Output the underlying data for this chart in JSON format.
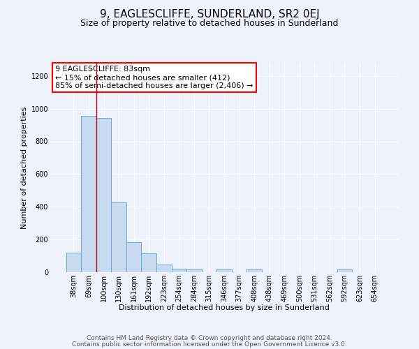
{
  "title1": "9, EAGLESCLIFFE, SUNDERLAND, SR2 0EJ",
  "title2": "Size of property relative to detached houses in Sunderland",
  "xlabel": "Distribution of detached houses by size in Sunderland",
  "ylabel": "Number of detached properties",
  "bar_color": "#c8daf0",
  "bar_edge_color": "#6aaad4",
  "bar_width": 1.0,
  "categories": [
    "38sqm",
    "69sqm",
    "100sqm",
    "130sqm",
    "161sqm",
    "192sqm",
    "223sqm",
    "254sqm",
    "284sqm",
    "315sqm",
    "346sqm",
    "377sqm",
    "408sqm",
    "438sqm",
    "469sqm",
    "500sqm",
    "531sqm",
    "562sqm",
    "592sqm",
    "623sqm",
    "654sqm"
  ],
  "values": [
    120,
    955,
    945,
    425,
    185,
    115,
    48,
    22,
    15,
    0,
    18,
    0,
    15,
    0,
    0,
    0,
    0,
    0,
    15,
    0,
    0
  ],
  "red_line_x": 1.5,
  "annotation_line1": "9 EAGLESCLIFFE: 83sqm",
  "annotation_line2": "← 15% of detached houses are smaller (412)",
  "annotation_line3": "85% of semi-detached houses are larger (2,406) →",
  "annotation_box_color": "white",
  "annotation_box_edge_color": "red",
  "red_line_color": "#cc0000",
  "ylim": [
    0,
    1280
  ],
  "yticks": [
    0,
    200,
    400,
    600,
    800,
    1000,
    1200
  ],
  "footer1": "Contains HM Land Registry data © Crown copyright and database right 2024.",
  "footer2": "Contains public sector information licensed under the Open Government Licence v3.0.",
  "background_color": "#eef2fa",
  "grid_color": "#ffffff",
  "title1_fontsize": 11,
  "title2_fontsize": 9,
  "axis_label_fontsize": 8,
  "tick_fontsize": 7,
  "annotation_fontsize": 8,
  "footer_fontsize": 6.5
}
